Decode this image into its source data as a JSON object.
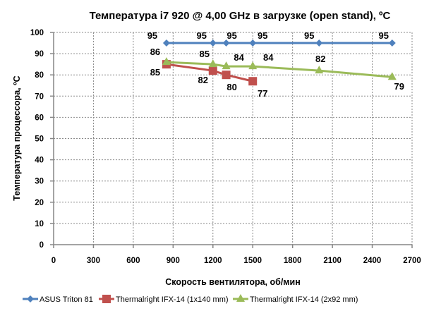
{
  "chart_data": {
    "type": "line",
    "title": "Температура i7 920 @ 4,00 GHz в загрузке (open stand), ºC",
    "xlabel": "Скорость вентилятора, об/мин",
    "ylabel": "Температура процессора, ºC",
    "xlim": [
      0,
      2700
    ],
    "ylim": [
      0,
      100
    ],
    "x_ticks": [
      0,
      300,
      600,
      900,
      1200,
      1500,
      1800,
      2100,
      2400,
      2700
    ],
    "y_ticks": [
      0,
      10,
      20,
      30,
      40,
      50,
      60,
      70,
      80,
      90,
      100
    ],
    "grid": true,
    "legend_position": "bottom",
    "series": [
      {
        "name": "ASUS Triton 81",
        "color": "#4F81BD",
        "marker": "diamond",
        "x": [
          850,
          1200,
          1300,
          1500,
          2000,
          2550
        ],
        "values": [
          95,
          95,
          95,
          95,
          95,
          95
        ]
      },
      {
        "name": "Thermalright IFX-14 (1x140 mm)",
        "color": "#C0504D",
        "marker": "square",
        "x": [
          850,
          1200,
          1300,
          1500
        ],
        "values": [
          85,
          82,
          80,
          77
        ]
      },
      {
        "name": "Thermalright IFX-14 (2x92 mm)",
        "color": "#9BBB59",
        "marker": "triangle",
        "x": [
          850,
          1200,
          1300,
          1500,
          2000,
          2550
        ],
        "values": [
          86,
          85,
          84,
          84,
          82,
          79
        ]
      }
    ]
  }
}
